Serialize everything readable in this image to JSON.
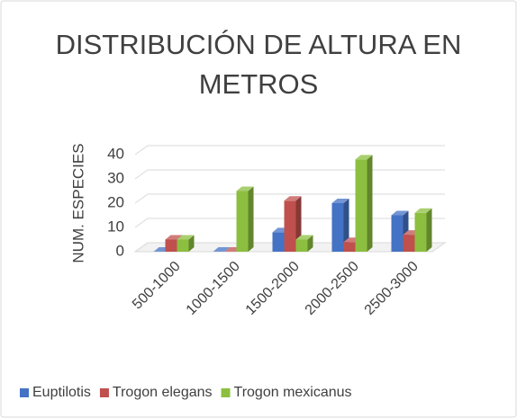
{
  "chart_data": {
    "type": "bar3d",
    "title": "DISTRIBUCIÓN DE ALTURA EN METROS",
    "y_label": "NUM. ESPECIES",
    "categories": [
      "500-1000",
      "1000-1500",
      "1500-2000",
      "2000-2500",
      "2500-3000"
    ],
    "series": [
      {
        "name": "Euptilotis",
        "color": "#4472c4",
        "values": [
          0,
          0,
          8,
          20,
          15
        ]
      },
      {
        "name": "Trogon elegans",
        "color": "#c0504d",
        "values": [
          5,
          0,
          21,
          4,
          7
        ]
      },
      {
        "name": "Trogon mexicanus",
        "color": "#8cbf3f",
        "values": [
          5,
          25,
          5,
          38,
          16
        ]
      }
    ],
    "ylim": [
      0,
      40
    ],
    "yticks": [
      0,
      10,
      20,
      30,
      40
    ],
    "grid": true,
    "legend": "bottom"
  }
}
